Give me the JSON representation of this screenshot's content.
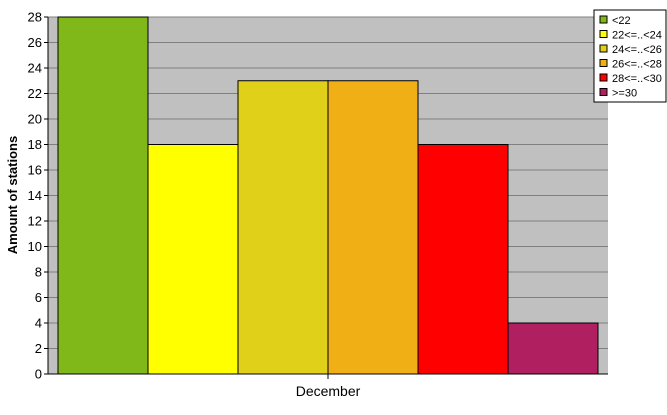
{
  "chart_data": {
    "type": "bar",
    "title": "",
    "xlabel": "",
    "ylabel": "Amount of stations",
    "categories": [
      "December"
    ],
    "ylim": [
      0,
      28
    ],
    "yticks": [
      0,
      2,
      4,
      6,
      8,
      10,
      12,
      14,
      16,
      18,
      20,
      22,
      24,
      26,
      28
    ],
    "grid": true,
    "legend_position": "top-right",
    "series": [
      {
        "name": "<22",
        "values": [
          28
        ],
        "color": "#80b819"
      },
      {
        "name": "22<=..<24",
        "values": [
          18
        ],
        "color": "#ffff00"
      },
      {
        "name": "24<=..<26",
        "values": [
          23
        ],
        "color": "#e0d019"
      },
      {
        "name": "26<=..<28",
        "values": [
          23
        ],
        "color": "#f0b015"
      },
      {
        "name": "28<=..<30",
        "values": [
          18
        ],
        "color": "#ff0000"
      },
      {
        "name": ">=30",
        "values": [
          4
        ],
        "color": "#b02060"
      }
    ],
    "plot_background": "#c0c0c0"
  }
}
